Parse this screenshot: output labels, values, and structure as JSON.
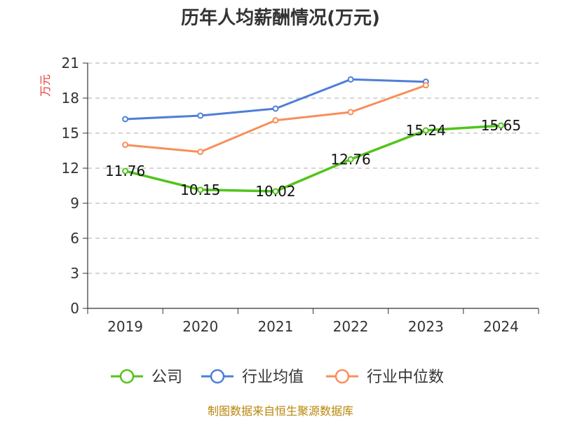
{
  "chart_data": {
    "type": "line",
    "title": "历年人均薪酬情况(万元)",
    "ylabel": "万元",
    "categories": [
      "2019",
      "2020",
      "2021",
      "2022",
      "2023",
      "2024"
    ],
    "ylim": [
      0,
      21
    ],
    "yticks": [
      "0",
      "3",
      "6",
      "9",
      "12",
      "15",
      "18",
      "21"
    ],
    "grid": true,
    "legend_position": "bottom",
    "series": [
      {
        "name": "公司",
        "color": "#52c41a",
        "values": [
          11.76,
          10.15,
          10.02,
          12.76,
          15.24,
          15.65
        ],
        "labels": [
          "11.76",
          "10.15",
          "10.02",
          "12.76",
          "15.24",
          "15.65"
        ]
      },
      {
        "name": "行业均值",
        "color": "#4e7fd6",
        "values": [
          16.2,
          16.5,
          17.1,
          19.6,
          19.4,
          null
        ]
      },
      {
        "name": "行业中位数",
        "color": "#f78f5a",
        "values": [
          14.0,
          13.4,
          16.1,
          16.8,
          19.1,
          null
        ]
      }
    ]
  },
  "source_text": "制图数据来自恒生聚源数据库"
}
